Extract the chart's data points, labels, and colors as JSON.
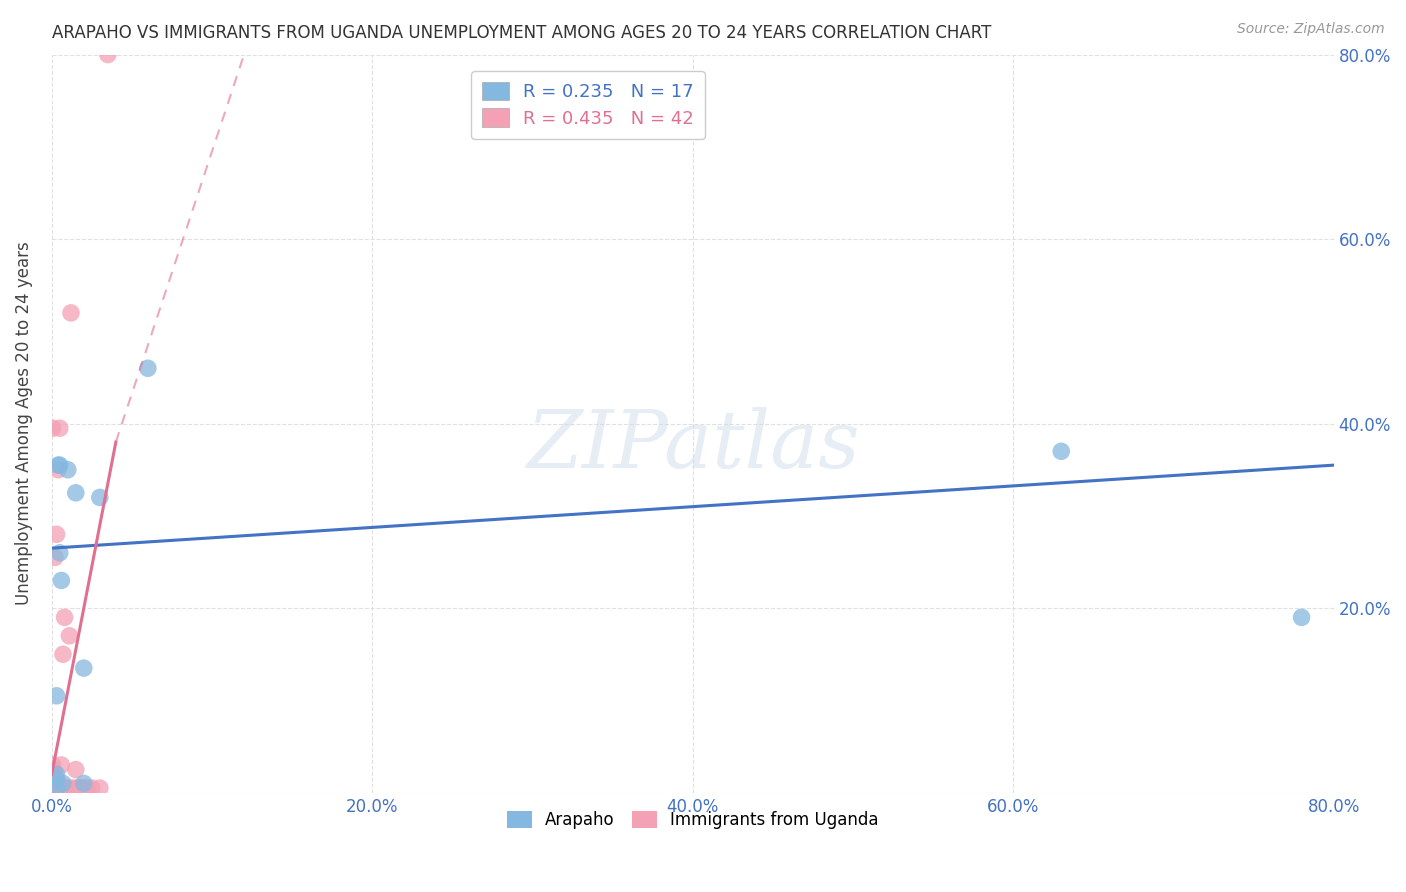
{
  "title": "ARAPAHO VS IMMIGRANTS FROM UGANDA UNEMPLOYMENT AMONG AGES 20 TO 24 YEARS CORRELATION CHART",
  "source": "Source: ZipAtlas.com",
  "ylabel": "Unemployment Among Ages 20 to 24 years",
  "xlim": [
    0,
    80
  ],
  "ylim": [
    0,
    80
  ],
  "xticks": [
    0,
    20,
    40,
    60,
    80
  ],
  "yticks": [
    0,
    20,
    40,
    60,
    80
  ],
  "xtick_labels": [
    "0.0%",
    "20.0%",
    "40.0%",
    "60.0%",
    "80.0%"
  ],
  "ytick_labels_right": [
    "",
    "20.0%",
    "40.0%",
    "60.0%",
    "80.0%"
  ],
  "background_color": "#ffffff",
  "grid_color": "#e0e0e0",
  "watermark_text": "ZIPatlas",
  "arapaho_color": "#85b8e0",
  "uganda_color": "#f4a0b5",
  "arapaho_R": 0.235,
  "arapaho_N": 17,
  "uganda_R": 0.435,
  "uganda_N": 42,
  "arapaho_line_color": "#4472c4",
  "uganda_line_color": "#e07090",
  "arapaho_points_x": [
    0.3,
    0.3,
    0.4,
    0.5,
    0.5,
    0.6,
    0.7,
    1.0,
    1.5,
    2.0,
    2.0,
    3.0,
    6.0,
    63.0,
    78.0,
    0.3,
    0.3
  ],
  "arapaho_points_y": [
    0.5,
    1.5,
    35.5,
    35.5,
    26.0,
    23.0,
    1.0,
    35.0,
    32.5,
    13.5,
    1.0,
    32.0,
    46.0,
    37.0,
    19.0,
    10.5,
    2.0
  ],
  "uganda_points_x": [
    0.05,
    0.05,
    0.05,
    0.05,
    0.05,
    0.05,
    0.05,
    0.05,
    0.05,
    0.05,
    0.05,
    0.05,
    0.1,
    0.1,
    0.1,
    0.1,
    0.2,
    0.2,
    0.2,
    0.3,
    0.3,
    0.4,
    0.4,
    0.5,
    0.5,
    0.6,
    0.7,
    0.8,
    0.9,
    1.0,
    1.1,
    1.2,
    1.3,
    1.5,
    1.6,
    1.7,
    1.8,
    2.0,
    2.2,
    2.5,
    3.0,
    3.5
  ],
  "uganda_points_y": [
    0.5,
    0.5,
    1.0,
    1.0,
    1.5,
    2.0,
    2.5,
    3.0,
    0.5,
    0.5,
    0.5,
    39.5,
    0.5,
    0.5,
    1.0,
    2.5,
    0.5,
    1.0,
    25.5,
    0.5,
    28.0,
    1.0,
    35.0,
    0.5,
    39.5,
    3.0,
    15.0,
    19.0,
    0.5,
    0.5,
    17.0,
    52.0,
    0.5,
    2.5,
    0.5,
    0.5,
    0.5,
    0.5,
    0.5,
    0.5,
    0.5,
    80.0
  ],
  "arapaho_line_x0": 0,
  "arapaho_line_y0": 26.5,
  "arapaho_line_x1": 80,
  "arapaho_line_y1": 35.5,
  "uganda_solid_x0": 0.0,
  "uganda_solid_y0": 2.0,
  "uganda_solid_x1": 4.0,
  "uganda_solid_y1": 38.0,
  "uganda_dashed_x0": 4.0,
  "uganda_dashed_y0": 38.0,
  "uganda_dashed_x1": 12.0,
  "uganda_dashed_y1": 80.0
}
